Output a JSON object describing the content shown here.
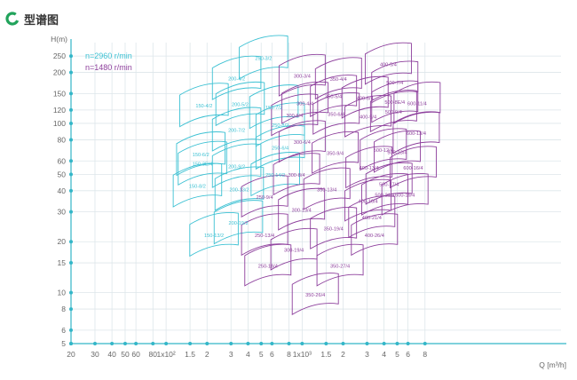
{
  "header": {
    "title": "型谱图",
    "icon": "c-ring-icon"
  },
  "colors": {
    "cyan": "#3cc1d3",
    "purple": "#8d3f9c",
    "grid": "#dde6ea",
    "axis": "#33b6c8",
    "text": "#666666"
  },
  "chart_data": {
    "type": "scatter",
    "title": "",
    "xlabel": "Q [m³/h]",
    "ylabel": "H(m)",
    "x_scale": "log",
    "y_scale": "log",
    "xlim": [
      20,
      80000
    ],
    "ylim": [
      5,
      300
    ],
    "grid": true,
    "legend_placement": "top-left",
    "x_ticks": [
      {
        "v": 20,
        "label": "20"
      },
      {
        "v": 30,
        "label": "30"
      },
      {
        "v": 40,
        "label": "40"
      },
      {
        "v": 50,
        "label": "50"
      },
      {
        "v": 60,
        "label": "60"
      },
      {
        "v": 80,
        "label": "80"
      },
      {
        "v": 100,
        "label": "1x10²"
      },
      {
        "v": 150,
        "label": "1.5"
      },
      {
        "v": 200,
        "label": "2"
      },
      {
        "v": 300,
        "label": "3"
      },
      {
        "v": 400,
        "label": "4"
      },
      {
        "v": 500,
        "label": "5"
      },
      {
        "v": 600,
        "label": "6"
      },
      {
        "v": 800,
        "label": "8"
      },
      {
        "v": 1000,
        "label": "1x10³"
      },
      {
        "v": 1500,
        "label": "1.5"
      },
      {
        "v": 2000,
        "label": "2"
      },
      {
        "v": 3000,
        "label": "3"
      },
      {
        "v": 4000,
        "label": "4"
      },
      {
        "v": 5000,
        "label": "5"
      },
      {
        "v": 6000,
        "label": "6"
      },
      {
        "v": 8000,
        "label": "8"
      }
    ],
    "y_ticks": [
      5,
      6,
      8,
      10,
      15,
      20,
      30,
      40,
      50,
      60,
      80,
      100,
      120,
      150,
      200,
      250
    ],
    "series": [
      {
        "name": "n=2960 r/min",
        "color": "#3cc1d3",
        "points": [
          {
            "label": "250-3/2",
            "q": 520,
            "h": 245
          },
          {
            "label": "200-4/2",
            "q": 330,
            "h": 185
          },
          {
            "label": "200-5/2",
            "q": 350,
            "h": 130
          },
          {
            "label": "150-4/2",
            "q": 190,
            "h": 128
          },
          {
            "label": "150-7/2",
            "q": 620,
            "h": 125
          },
          {
            "label": "250-8/2",
            "q": 690,
            "h": 98
          },
          {
            "label": "200-7/2",
            "q": 330,
            "h": 92
          },
          {
            "label": "250-6/4",
            "q": 690,
            "h": 72
          },
          {
            "label": "150-6/2",
            "q": 180,
            "h": 66
          },
          {
            "label": "150-3E/4",
            "q": 185,
            "h": 58
          },
          {
            "label": "200-9/2",
            "q": 330,
            "h": 56
          },
          {
            "label": "250-14/2",
            "q": 635,
            "h": 50
          },
          {
            "label": "150-8/2",
            "q": 170,
            "h": 43
          },
          {
            "label": "200-13/2",
            "q": 345,
            "h": 41
          },
          {
            "label": "200-19/2",
            "q": 340,
            "h": 26
          },
          {
            "label": "150-13/2",
            "q": 225,
            "h": 22
          }
        ]
      },
      {
        "name": "n=1480 r/min",
        "color": "#8d3f9c",
        "points": [
          {
            "label": "400-5/4",
            "q": 4300,
            "h": 225
          },
          {
            "label": "300-3/4",
            "q": 1000,
            "h": 192
          },
          {
            "label": "350-4/4",
            "q": 1850,
            "h": 184
          },
          {
            "label": "500-7/4",
            "q": 4800,
            "h": 175
          },
          {
            "label": "350-5/4",
            "q": 1700,
            "h": 145
          },
          {
            "label": "400-6/4",
            "q": 2900,
            "h": 142
          },
          {
            "label": "300-4/4",
            "q": 1050,
            "h": 132
          },
          {
            "label": "500-8E/4",
            "q": 4800,
            "h": 134
          },
          {
            "label": "600-11/4",
            "q": 7000,
            "h": 132
          },
          {
            "label": "500-9/4",
            "q": 4700,
            "h": 118
          },
          {
            "label": "350-6/4",
            "q": 1780,
            "h": 114
          },
          {
            "label": "300-6/4",
            "q": 880,
            "h": 112
          },
          {
            "label": "400-9/4",
            "q": 3050,
            "h": 110
          },
          {
            "label": "600-13/4",
            "q": 6900,
            "h": 88
          },
          {
            "label": "300-6/4",
            "q": 1000,
            "h": 78
          },
          {
            "label": "500-12/4",
            "q": 3950,
            "h": 70
          },
          {
            "label": "350-9/4",
            "q": 1750,
            "h": 67
          },
          {
            "label": "500-13/4",
            "q": 5000,
            "h": 68
          },
          {
            "label": "400-13/4",
            "q": 3100,
            "h": 55
          },
          {
            "label": "600-16/4",
            "q": 6550,
            "h": 55
          },
          {
            "label": "300-8/4",
            "q": 910,
            "h": 50
          },
          {
            "label": "500-17/4",
            "q": 4350,
            "h": 44
          },
          {
            "label": "350-13/4",
            "q": 1520,
            "h": 41
          },
          {
            "label": "500-21/4",
            "q": 4050,
            "h": 38
          },
          {
            "label": "600-19/4",
            "q": 5700,
            "h": 38
          },
          {
            "label": "250-9/4",
            "q": 530,
            "h": 37
          },
          {
            "label": "400-16/4",
            "q": 3050,
            "h": 35
          },
          {
            "label": "300-13/4",
            "q": 990,
            "h": 31
          },
          {
            "label": "400-21/4",
            "q": 3250,
            "h": 28
          },
          {
            "label": "350-19/4",
            "q": 1700,
            "h": 24
          },
          {
            "label": "400-26/4",
            "q": 3400,
            "h": 22
          },
          {
            "label": "250-13/4",
            "q": 530,
            "h": 22
          },
          {
            "label": "300-19/4",
            "q": 870,
            "h": 18
          },
          {
            "label": "350-27/4",
            "q": 1900,
            "h": 14.5
          },
          {
            "label": "250-18/4",
            "q": 560,
            "h": 14.5
          },
          {
            "label": "350-26/4",
            "q": 1250,
            "h": 9.8
          }
        ]
      }
    ]
  }
}
